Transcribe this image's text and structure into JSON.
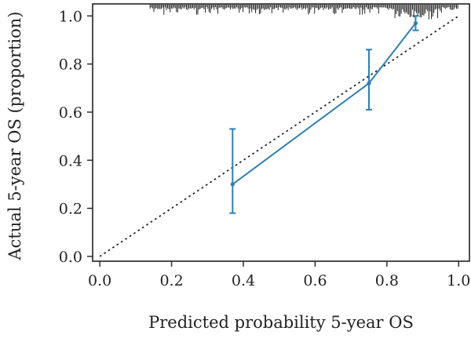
{
  "chart_data": {
    "type": "line",
    "title": "",
    "xlabel": "Predicted probability 5-year OS",
    "ylabel": "Actual 5-year OS (proportion)",
    "xlim": [
      -0.02,
      1.03
    ],
    "ylim": [
      -0.02,
      1.05
    ],
    "xticks": [
      0.0,
      0.2,
      0.4,
      0.6,
      0.8,
      1.0
    ],
    "yticks": [
      0.0,
      0.2,
      0.4,
      0.6,
      0.8,
      1.0
    ],
    "x_tick_labels": [
      "0.0",
      "0.2",
      "0.4",
      "0.6",
      "0.8",
      "1.0"
    ],
    "y_tick_labels": [
      "0.0",
      "0.2",
      "0.4",
      "0.6",
      "0.8",
      "1.0"
    ],
    "reference_line": {
      "style": "dotted",
      "from": [
        0,
        0
      ],
      "to": [
        1,
        1
      ],
      "color": "#222222"
    },
    "series": [
      {
        "color": "#2f7fb5",
        "points": [
          {
            "x": 0.37,
            "y": 0.3,
            "lower": 0.18,
            "upper": 0.53
          },
          {
            "x": 0.75,
            "y": 0.72,
            "lower": 0.61,
            "upper": 0.86
          },
          {
            "x": 0.88,
            "y": 0.97,
            "lower": 0.94,
            "upper": 1.0
          }
        ]
      }
    ],
    "rug": {
      "position": "top",
      "color": "#222222",
      "x_range": [
        0.14,
        1.0
      ],
      "dense_region": [
        0.82,
        0.95
      ]
    },
    "grid": false
  }
}
